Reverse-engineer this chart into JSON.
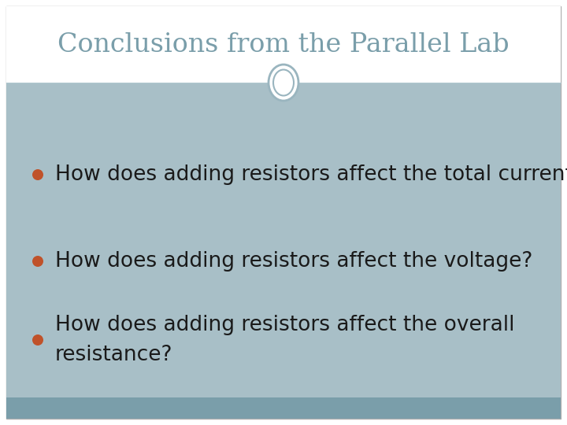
{
  "title": "Conclusions from the Parallel Lab",
  "title_color": "#7a9eaa",
  "title_fontsize": 24,
  "outer_bg": "#ffffff",
  "slide_bg": "#a8bfc7",
  "header_bg": "#ffffff",
  "footer_color": "#7a9eaa",
  "bullet_color": "#c0522a",
  "text_color": "#1a1a1a",
  "bullet_fontsize": 19,
  "bullets": [
    "How does adding resistors affect the total current?",
    "How does adding resistors affect the voltage?",
    "How does adding resistors affect the overall\nresistance?"
  ],
  "border_color": "#7a9eaa",
  "oval_edge_color": "#9ab5bf",
  "oval_bg": "#ffffff",
  "header_line_color": "#b0c8d0",
  "outer_border_color": "#b0b0b0"
}
